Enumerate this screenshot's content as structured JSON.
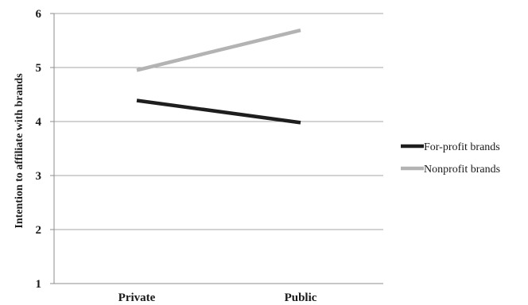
{
  "chart_data": {
    "type": "line",
    "categories": [
      "Private",
      "Public"
    ],
    "series": [
      {
        "name": "For-profit brands",
        "values": [
          4.39,
          3.98
        ],
        "color": "#1e1e1e"
      },
      {
        "name": "Nonprofit brands",
        "values": [
          4.95,
          5.69
        ],
        "color": "#b3b3b3"
      }
    ],
    "ylabel": "Intention to affiliate with brands",
    "xlabel": "",
    "ylim": [
      1,
      6
    ],
    "yticks": [
      1,
      2,
      3,
      4,
      5,
      6
    ],
    "grid": true,
    "legend_position": "right"
  }
}
